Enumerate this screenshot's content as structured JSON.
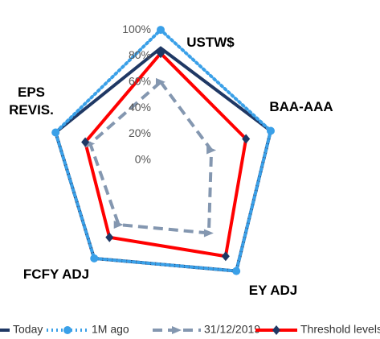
{
  "chart_data": {
    "type": "radar",
    "categories": [
      "USTW$",
      "BAA-AAA",
      "EY ADJ",
      "FCFY ADJ",
      "EPS REVIS."
    ],
    "rlim": [
      -5,
      105
    ],
    "rticks": [
      {
        "value": 0,
        "label": "0%"
      },
      {
        "value": 20,
        "label": "20%"
      },
      {
        "value": 40,
        "label": "40%"
      },
      {
        "value": 60,
        "label": "60%"
      },
      {
        "value": 80,
        "label": "80%"
      },
      {
        "value": 100,
        "label": "100%"
      }
    ],
    "legend": "bottom",
    "series": [
      {
        "name": "Today",
        "color": "#1f3864",
        "dash": "solid",
        "width": 4,
        "marker": "none",
        "values": [
          86,
          84,
          94,
          82,
          80
        ]
      },
      {
        "name": "1M ago",
        "color": "#3aa0e8",
        "dash": "dotted",
        "width": 4,
        "marker": "circle",
        "values": [
          100,
          84,
          94,
          82,
          80
        ]
      },
      {
        "name": "31/12/2019",
        "color": "#8497b0",
        "dash": "dashed",
        "width": 4,
        "marker": "arrow",
        "values": [
          60,
          36,
          58,
          50,
          52
        ]
      },
      {
        "name": "Threshold levels",
        "color": "#ff0000",
        "dash": "solid",
        "width": 4,
        "marker": "diamond",
        "marker_color": "#1f3864",
        "values": [
          82,
          64,
          80,
          62,
          56
        ]
      }
    ]
  }
}
